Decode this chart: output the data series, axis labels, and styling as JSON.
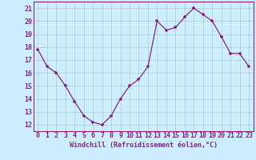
{
  "x": [
    0,
    1,
    2,
    3,
    4,
    5,
    6,
    7,
    8,
    9,
    10,
    11,
    12,
    13,
    14,
    15,
    16,
    17,
    18,
    19,
    20,
    21,
    22,
    23
  ],
  "y": [
    17.8,
    16.5,
    16.0,
    15.0,
    13.8,
    12.7,
    12.2,
    12.0,
    12.7,
    14.0,
    15.0,
    15.5,
    16.5,
    20.0,
    19.3,
    19.5,
    20.3,
    21.0,
    20.5,
    20.0,
    18.8,
    17.5,
    17.5,
    16.5
  ],
  "line_color": "#882288",
  "marker": "+",
  "bg_color": "#cceeff",
  "grid_color": "#aacccc",
  "xlabel": "Windchill (Refroidissement éolien,°C)",
  "xlim": [
    -0.5,
    23.5
  ],
  "ylim": [
    11.5,
    21.5
  ],
  "xticks": [
    0,
    1,
    2,
    3,
    4,
    5,
    6,
    7,
    8,
    9,
    10,
    11,
    12,
    13,
    14,
    15,
    16,
    17,
    18,
    19,
    20,
    21,
    22,
    23
  ],
  "yticks": [
    12,
    13,
    14,
    15,
    16,
    17,
    18,
    19,
    20,
    21
  ],
  "axis_fontsize": 6,
  "tick_fontsize": 6
}
